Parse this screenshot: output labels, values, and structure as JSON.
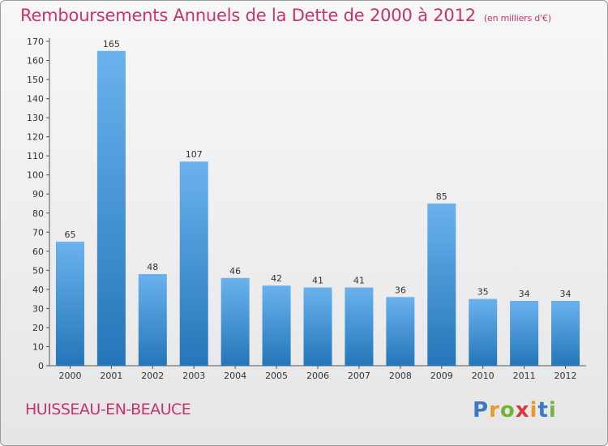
{
  "title": "Remboursements Annuels de la Dette de 2000 à 2012",
  "unit_note": "(en milliers d'€)",
  "commune": "HUISSEAU-EN-BEAUCE",
  "logo": {
    "text": "Proxiti",
    "letters": [
      "P",
      "r",
      "o",
      "x",
      "i",
      "t",
      "i"
    ]
  },
  "colors": {
    "accent_text": "#c8336e",
    "bar_top": "#6ab2ee",
    "bar_bottom": "#2476b8"
  },
  "chart_data": {
    "type": "bar",
    "title": "Remboursements Annuels de la Dette de 2000 à 2012",
    "xlabel": "",
    "ylabel": "",
    "categories": [
      "2000",
      "2001",
      "2002",
      "2003",
      "2004",
      "2005",
      "2006",
      "2007",
      "2008",
      "2009",
      "2010",
      "2011",
      "2012"
    ],
    "values": [
      65,
      165,
      48,
      107,
      46,
      42,
      41,
      41,
      36,
      85,
      35,
      34,
      34
    ],
    "ylim": [
      0,
      170
    ],
    "yticks": [
      0,
      10,
      20,
      30,
      40,
      50,
      60,
      70,
      80,
      90,
      100,
      110,
      120,
      130,
      140,
      150,
      160,
      170
    ],
    "grid": false,
    "legend": "none"
  }
}
